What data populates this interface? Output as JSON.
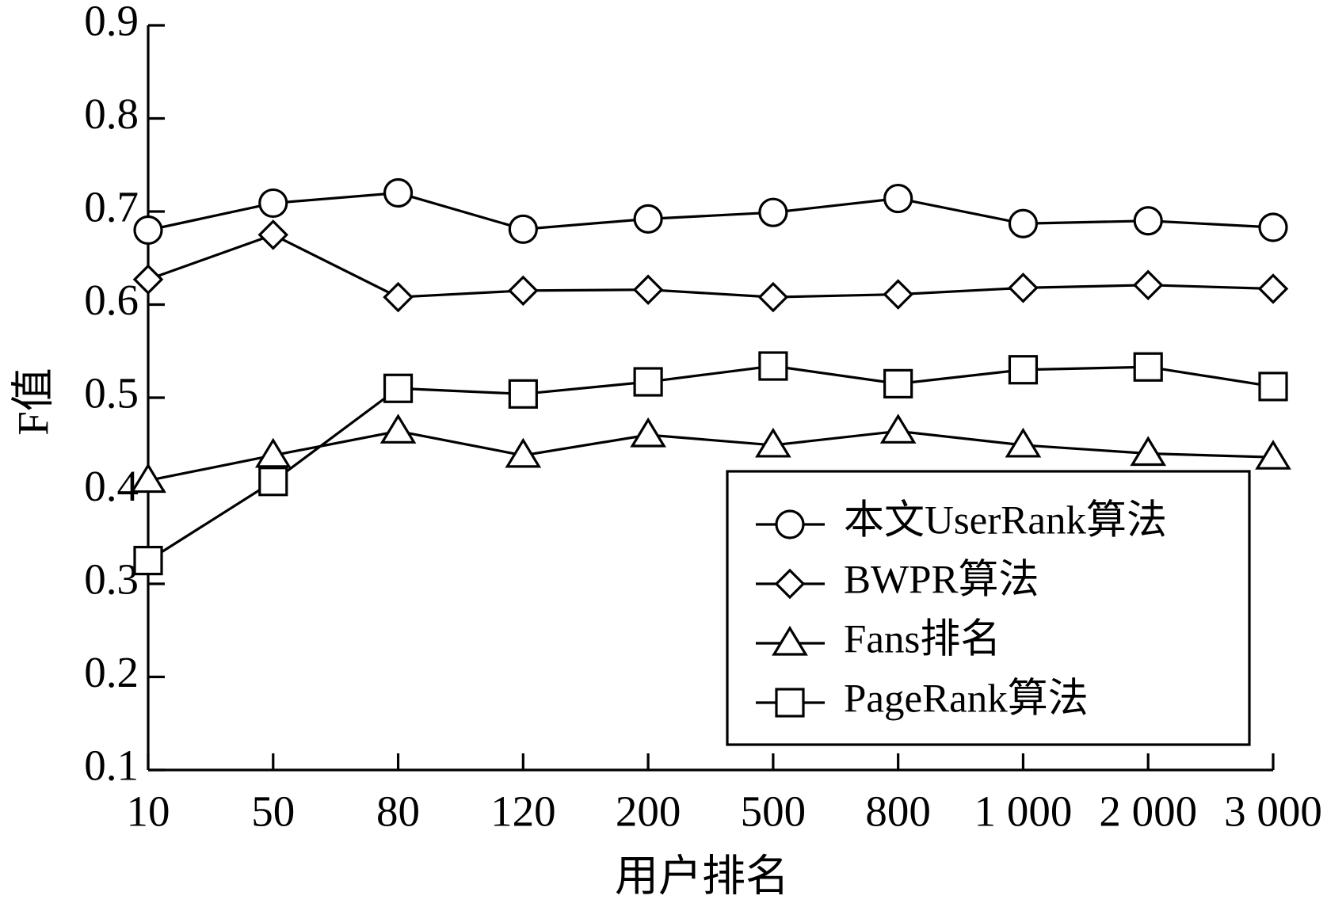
{
  "chart_data": {
    "type": "line",
    "x_label": "用户排名",
    "y_label": "F值",
    "categories": [
      "10",
      "50",
      "80",
      "120",
      "200",
      "500",
      "800",
      "1 000",
      "2 000",
      "3 000"
    ],
    "series": [
      {
        "name": "本文UserRank算法",
        "color": "#000000",
        "marker": "circle",
        "values": [
          0.68,
          0.709,
          0.72,
          0.681,
          0.692,
          0.699,
          0.714,
          0.687,
          0.69,
          0.683
        ]
      },
      {
        "name": "BWPR算法",
        "color": "#000000",
        "marker": "diamond",
        "values": [
          0.627,
          0.675,
          0.608,
          0.615,
          0.616,
          0.608,
          0.611,
          0.618,
          0.621,
          0.617
        ]
      },
      {
        "name": "Fans排名",
        "color": "#000000",
        "marker": "triangle",
        "values": [
          0.411,
          0.438,
          0.464,
          0.438,
          0.46,
          0.449,
          0.464,
          0.449,
          0.44,
          0.436
        ]
      },
      {
        "name": "PageRank算法",
        "color": "#000000",
        "marker": "square",
        "values": [
          0.325,
          0.41,
          0.51,
          0.504,
          0.517,
          0.534,
          0.515,
          0.53,
          0.533,
          0.512
        ]
      }
    ],
    "ylim": [
      0.1,
      0.9
    ],
    "yticks": [
      0.1,
      0.2,
      0.3,
      0.4,
      0.5,
      0.6,
      0.7,
      0.8,
      0.9
    ],
    "grid": false,
    "legend": "lower right"
  }
}
